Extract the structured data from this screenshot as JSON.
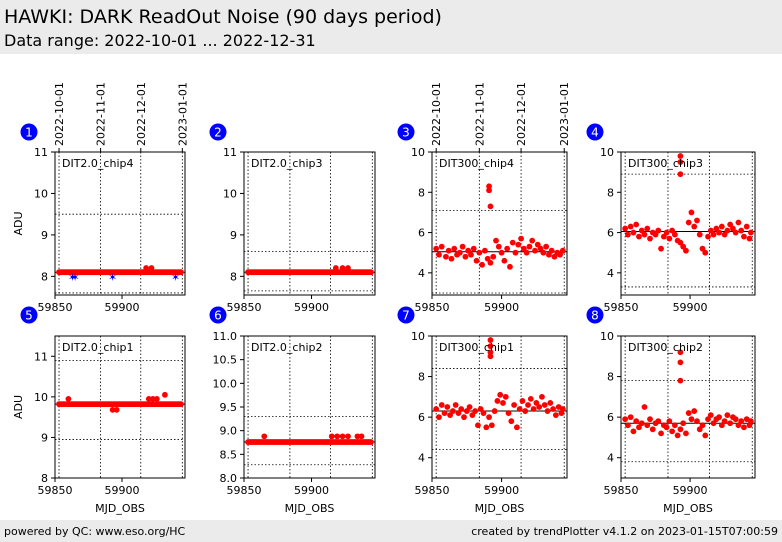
{
  "header": {
    "title": "HAWKI: DARK ReadOut Noise (90 days period)",
    "subtitle": "Data range: 2022-10-01 ... 2022-12-31"
  },
  "footer": {
    "left": "powered by QC: www.eso.org/HC",
    "right": "created by trendPlotter v4.1.2 on 2023-01-15T07:00:59"
  },
  "top_date_ticks": {
    "labels": [
      "2022-10-01",
      "2022-11-01",
      "2022-12-01",
      "2023-01-01"
    ],
    "mjd": [
      59853,
      59884,
      59914,
      59945
    ]
  },
  "colors": {
    "points": "#ff0000",
    "outliers": "#0000ff",
    "badge": "#0000ff"
  },
  "chart_data": [
    {
      "type": "scatter",
      "index": "1",
      "label": "DIT2.0_chip4",
      "xlim": [
        59850,
        59947
      ],
      "ylim": [
        7.55,
        11.0
      ],
      "xticks": [
        59850,
        59900
      ],
      "xtick_labels": [
        "59850",
        "59900"
      ],
      "yticks": [
        8,
        9,
        10,
        11
      ],
      "ytick_labels": [
        "8",
        "9",
        "10",
        "11"
      ],
      "ylabel": "ADU",
      "xlabel": "",
      "show_dates": true,
      "ref_line": 8.1,
      "band": [
        7.6,
        9.5
      ],
      "baseline": 8.1,
      "x_start": 59853,
      "x_end": 59944,
      "extra_points": [
        [
          59918,
          8.2
        ],
        [
          59922,
          8.2
        ]
      ],
      "outliers": [
        [
          59863,
          7.98
        ],
        [
          59865,
          7.98
        ],
        [
          59893,
          7.98
        ],
        [
          59940,
          7.98
        ]
      ]
    },
    {
      "type": "scatter",
      "index": "2",
      "label": "DIT2.0_chip3",
      "xlim": [
        59850,
        59947
      ],
      "ylim": [
        7.55,
        11.0
      ],
      "xticks": [
        59850,
        59900
      ],
      "xtick_labels": [
        "59850",
        "59900"
      ],
      "yticks": [
        8,
        9,
        10,
        11
      ],
      "ytick_labels": [
        "8",
        "9",
        "10",
        "11"
      ],
      "ylabel": "",
      "xlabel": "",
      "show_dates": false,
      "ref_line": 8.1,
      "band": [
        7.65,
        8.6
      ],
      "baseline": 8.1,
      "x_start": 59853,
      "x_end": 59944,
      "extra_points": [
        [
          59918,
          8.2
        ],
        [
          59923,
          8.2
        ],
        [
          59927,
          8.2
        ]
      ],
      "outliers": []
    },
    {
      "type": "scatter",
      "index": "3",
      "label": "DIT300_chip4",
      "xlim": [
        59850,
        59947
      ],
      "ylim": [
        2.9,
        10.0
      ],
      "xticks": [
        59850,
        59900
      ],
      "xtick_labels": [
        "59850",
        "59900"
      ],
      "yticks": [
        4,
        6,
        8,
        10
      ],
      "ytick_labels": [
        "4",
        "6",
        "8",
        "10"
      ],
      "ylabel": "",
      "xlabel": "",
      "show_dates": true,
      "ref_line": 5.05,
      "band": [
        3.0,
        7.1
      ],
      "cloud_points": [
        [
          59853,
          5.2
        ],
        [
          59855,
          4.9
        ],
        [
          59857,
          5.3
        ],
        [
          59860,
          4.8
        ],
        [
          59862,
          5.1
        ],
        [
          59864,
          4.7
        ],
        [
          59866,
          5.2
        ],
        [
          59868,
          4.9
        ],
        [
          59870,
          5.0
        ],
        [
          59872,
          5.3
        ],
        [
          59874,
          4.8
        ],
        [
          59876,
          5.1
        ],
        [
          59878,
          4.9
        ],
        [
          59880,
          5.2
        ],
        [
          59882,
          4.6
        ],
        [
          59884,
          5.0
        ],
        [
          59886,
          4.4
        ],
        [
          59888,
          5.1
        ],
        [
          59890,
          4.7
        ],
        [
          59892,
          4.5
        ],
        [
          59894,
          4.8
        ],
        [
          59896,
          5.6
        ],
        [
          59898,
          5.3
        ],
        [
          59900,
          5.0
        ],
        [
          59902,
          4.6
        ],
        [
          59904,
          5.2
        ],
        [
          59906,
          4.3
        ],
        [
          59908,
          5.5
        ],
        [
          59910,
          5.0
        ],
        [
          59912,
          5.4
        ],
        [
          59914,
          5.7
        ],
        [
          59916,
          5.2
        ],
        [
          59918,
          5.0
        ],
        [
          59920,
          5.3
        ],
        [
          59922,
          5.6
        ],
        [
          59924,
          5.1
        ],
        [
          59926,
          5.4
        ],
        [
          59928,
          5.2
        ],
        [
          59930,
          5.0
        ],
        [
          59932,
          5.3
        ],
        [
          59934,
          4.9
        ],
        [
          59936,
          5.1
        ],
        [
          59938,
          4.8
        ],
        [
          59940,
          5.0
        ],
        [
          59942,
          4.9
        ],
        [
          59944,
          5.1
        ]
      ],
      "extra_points": [
        [
          59891,
          8.3
        ],
        [
          59891,
          8.1
        ],
        [
          59892,
          7.3
        ]
      ],
      "outliers": []
    },
    {
      "type": "scatter",
      "index": "4",
      "label": "DIT300_chip3",
      "xlim": [
        59850,
        59947
      ],
      "ylim": [
        2.9,
        10.0
      ],
      "xticks": [
        59850,
        59900
      ],
      "xtick_labels": [
        "59850",
        "59900"
      ],
      "yticks": [
        4,
        6,
        8,
        10
      ],
      "ytick_labels": [
        "4",
        "6",
        "8",
        "10"
      ],
      "ylabel": "",
      "xlabel": "",
      "show_dates": false,
      "ref_line": 6.05,
      "band": [
        3.3,
        8.9
      ],
      "cloud_points": [
        [
          59853,
          6.2
        ],
        [
          59855,
          5.9
        ],
        [
          59857,
          6.3
        ],
        [
          59859,
          6.0
        ],
        [
          59861,
          6.4
        ],
        [
          59863,
          5.8
        ],
        [
          59865,
          6.1
        ],
        [
          59867,
          5.9
        ],
        [
          59869,
          6.2
        ],
        [
          59871,
          5.7
        ],
        [
          59873,
          6.0
        ],
        [
          59875,
          5.9
        ],
        [
          59877,
          6.1
        ],
        [
          59879,
          5.2
        ],
        [
          59881,
          5.8
        ],
        [
          59883,
          6.0
        ],
        [
          59885,
          5.7
        ],
        [
          59887,
          6.1
        ],
        [
          59889,
          5.9
        ],
        [
          59891,
          5.6
        ],
        [
          59893,
          5.5
        ],
        [
          59895,
          5.3
        ],
        [
          59897,
          5.1
        ],
        [
          59899,
          6.5
        ],
        [
          59901,
          7.0
        ],
        [
          59903,
          6.3
        ],
        [
          59905,
          6.6
        ],
        [
          59907,
          5.9
        ],
        [
          59909,
          5.2
        ],
        [
          59911,
          5.0
        ],
        [
          59913,
          5.8
        ],
        [
          59915,
          6.1
        ],
        [
          59917,
          5.9
        ],
        [
          59919,
          6.2
        ],
        [
          59921,
          6.0
        ],
        [
          59923,
          6.3
        ],
        [
          59925,
          5.9
        ],
        [
          59927,
          6.1
        ],
        [
          59929,
          6.4
        ],
        [
          59931,
          6.2
        ],
        [
          59933,
          6.0
        ],
        [
          59935,
          6.5
        ],
        [
          59937,
          6.1
        ],
        [
          59939,
          5.8
        ],
        [
          59941,
          6.3
        ],
        [
          59943,
          5.7
        ],
        [
          59944,
          6.0
        ]
      ],
      "extra_points": [
        [
          59893,
          9.8
        ],
        [
          59893,
          9.5
        ],
        [
          59893,
          8.9
        ]
      ],
      "outliers": []
    },
    {
      "type": "scatter",
      "index": "5",
      "label": "DIT2.0_chip1",
      "xlim": [
        59850,
        59947
      ],
      "ylim": [
        8.0,
        11.5
      ],
      "xticks": [
        59850,
        59900
      ],
      "xtick_labels": [
        "59850",
        "59900"
      ],
      "yticks": [
        8,
        9,
        10,
        11
      ],
      "ytick_labels": [
        "8",
        "9",
        "10",
        "11"
      ],
      "ylabel": "ADU",
      "xlabel": "MJD_OBS",
      "show_dates": false,
      "ref_line": 9.82,
      "band": [
        8.95,
        10.9
      ],
      "baseline": 9.82,
      "x_start": 59853,
      "x_end": 59944,
      "extra_points": [
        [
          59860,
          9.95
        ],
        [
          59893,
          9.68
        ],
        [
          59896,
          9.68
        ],
        [
          59920,
          9.95
        ],
        [
          59923,
          9.95
        ],
        [
          59926,
          9.95
        ],
        [
          59932,
          10.05
        ]
      ],
      "outliers": []
    },
    {
      "type": "scatter",
      "index": "6",
      "label": "DIT2.0_chip2",
      "xlim": [
        59850,
        59947
      ],
      "ylim": [
        8.0,
        11.0
      ],
      "xticks": [
        59850,
        59900
      ],
      "xtick_labels": [
        "59850",
        "59900"
      ],
      "yticks": [
        8.0,
        8.5,
        9.0,
        9.5,
        10.0,
        10.5,
        11.0
      ],
      "ytick_labels": [
        "8.0",
        "8.5",
        "9.0",
        "9.5",
        "10.0",
        "10.5",
        "11.0"
      ],
      "ylabel": "",
      "xlabel": "MJD_OBS",
      "show_dates": false,
      "ref_line": 8.76,
      "band": [
        8.28,
        9.3
      ],
      "baseline": 8.76,
      "x_start": 59853,
      "x_end": 59944,
      "extra_points": [
        [
          59865,
          8.88
        ],
        [
          59915,
          8.88
        ],
        [
          59919,
          8.88
        ],
        [
          59923,
          8.88
        ],
        [
          59927,
          8.88
        ],
        [
          59934,
          8.88
        ],
        [
          59937,
          8.88
        ]
      ],
      "outliers": []
    },
    {
      "type": "scatter",
      "index": "7",
      "label": "DIT300_chip1",
      "xlim": [
        59850,
        59947
      ],
      "ylim": [
        3.0,
        10.0
      ],
      "xticks": [
        59850,
        59900
      ],
      "xtick_labels": [
        "59850",
        "59900"
      ],
      "yticks": [
        4,
        6,
        8,
        10
      ],
      "ytick_labels": [
        "4",
        "6",
        "8",
        "10"
      ],
      "ylabel": "",
      "xlabel": "MJD_OBS",
      "show_dates": false,
      "ref_line": 6.3,
      "band": [
        4.4,
        8.4
      ],
      "cloud_points": [
        [
          59853,
          6.4
        ],
        [
          59855,
          6.0
        ],
        [
          59857,
          6.6
        ],
        [
          59859,
          6.2
        ],
        [
          59861,
          6.5
        ],
        [
          59863,
          6.1
        ],
        [
          59865,
          6.3
        ],
        [
          59867,
          6.6
        ],
        [
          59869,
          6.2
        ],
        [
          59871,
          6.4
        ],
        [
          59873,
          6.0
        ],
        [
          59875,
          6.3
        ],
        [
          59877,
          6.5
        ],
        [
          59879,
          6.1
        ],
        [
          59881,
          6.3
        ],
        [
          59883,
          5.6
        ],
        [
          59885,
          6.4
        ],
        [
          59887,
          6.2
        ],
        [
          59889,
          5.5
        ],
        [
          59891,
          6.0
        ],
        [
          59893,
          5.6
        ],
        [
          59895,
          6.3
        ],
        [
          59897,
          6.8
        ],
        [
          59899,
          7.1
        ],
        [
          59901,
          6.7
        ],
        [
          59903,
          7.0
        ],
        [
          59905,
          6.2
        ],
        [
          59907,
          5.8
        ],
        [
          59909,
          6.6
        ],
        [
          59911,
          5.5
        ],
        [
          59913,
          6.4
        ],
        [
          59915,
          6.8
        ],
        [
          59917,
          6.3
        ],
        [
          59919,
          6.6
        ],
        [
          59921,
          6.9
        ],
        [
          59923,
          6.4
        ],
        [
          59925,
          6.7
        ],
        [
          59927,
          6.5
        ],
        [
          59929,
          7.0
        ],
        [
          59931,
          6.6
        ],
        [
          59933,
          6.3
        ],
        [
          59935,
          6.7
        ],
        [
          59937,
          6.4
        ],
        [
          59939,
          6.1
        ],
        [
          59941,
          6.5
        ],
        [
          59943,
          6.2
        ],
        [
          59944,
          6.4
        ]
      ],
      "extra_points": [
        [
          59892,
          9.8
        ],
        [
          59892,
          9.5
        ],
        [
          59892,
          9.2
        ],
        [
          59892,
          9.0
        ]
      ],
      "outliers": []
    },
    {
      "type": "scatter",
      "index": "8",
      "label": "DIT300_chip2",
      "xlim": [
        59850,
        59947
      ],
      "ylim": [
        3.0,
        10.0
      ],
      "xticks": [
        59850,
        59900
      ],
      "xtick_labels": [
        "59850",
        "59900"
      ],
      "yticks": [
        4,
        6,
        8,
        10
      ],
      "ytick_labels": [
        "4",
        "6",
        "8",
        "10"
      ],
      "ylabel": "",
      "xlabel": "MJD_OBS",
      "show_dates": false,
      "ref_line": 5.7,
      "band": [
        3.8,
        7.8
      ],
      "cloud_points": [
        [
          59853,
          5.9
        ],
        [
          59855,
          5.6
        ],
        [
          59857,
          6.0
        ],
        [
          59859,
          5.3
        ],
        [
          59861,
          5.8
        ],
        [
          59863,
          5.5
        ],
        [
          59865,
          5.7
        ],
        [
          59867,
          6.5
        ],
        [
          59869,
          5.6
        ],
        [
          59871,
          5.9
        ],
        [
          59873,
          5.4
        ],
        [
          59875,
          5.7
        ],
        [
          59877,
          5.8
        ],
        [
          59879,
          5.2
        ],
        [
          59881,
          5.6
        ],
        [
          59883,
          5.5
        ],
        [
          59885,
          5.8
        ],
        [
          59887,
          5.3
        ],
        [
          59889,
          5.6
        ],
        [
          59891,
          5.1
        ],
        [
          59893,
          5.4
        ],
        [
          59895,
          5.7
        ],
        [
          59897,
          5.2
        ],
        [
          59899,
          6.2
        ],
        [
          59901,
          5.9
        ],
        [
          59903,
          6.3
        ],
        [
          59905,
          5.8
        ],
        [
          59907,
          5.4
        ],
        [
          59909,
          5.6
        ],
        [
          59911,
          5.1
        ],
        [
          59913,
          5.9
        ],
        [
          59915,
          6.1
        ],
        [
          59917,
          5.7
        ],
        [
          59919,
          5.9
        ],
        [
          59921,
          6.0
        ],
        [
          59923,
          5.6
        ],
        [
          59925,
          5.8
        ],
        [
          59927,
          6.1
        ],
        [
          59929,
          5.7
        ],
        [
          59931,
          6.0
        ],
        [
          59933,
          5.9
        ],
        [
          59935,
          5.6
        ],
        [
          59937,
          5.8
        ],
        [
          59939,
          5.5
        ],
        [
          59941,
          5.9
        ],
        [
          59943,
          5.6
        ],
        [
          59944,
          5.8
        ]
      ],
      "extra_points": [
        [
          59893,
          9.2
        ],
        [
          59893,
          8.7
        ],
        [
          59893,
          7.8
        ]
      ],
      "outliers": []
    }
  ]
}
